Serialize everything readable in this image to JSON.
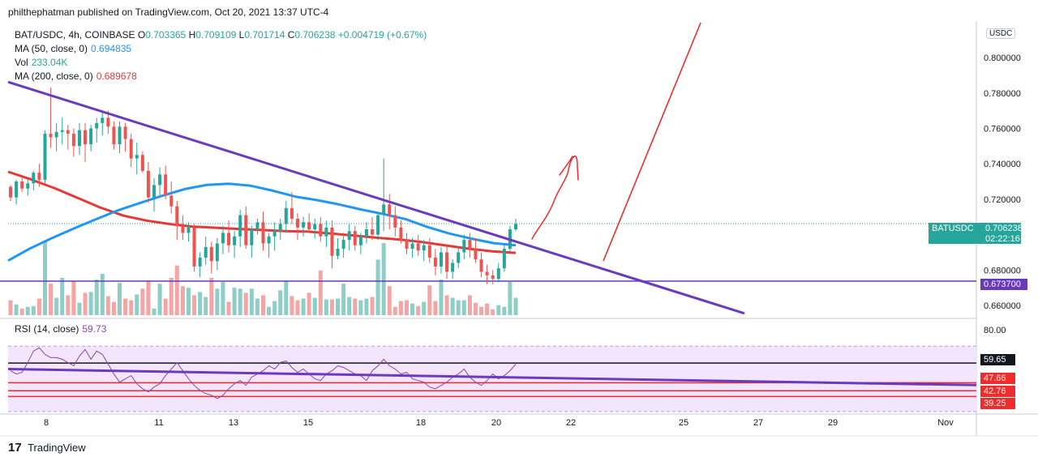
{
  "header": {
    "publish_line": "philthephatman published on TradingView.com, Oct 20, 2021 13:37 UTC-4"
  },
  "legend": {
    "symbol_line": "BAT/USDC, 4h, COINBASE",
    "ohlc": [
      {
        "k": "O",
        "v": "0.703365"
      },
      {
        "k": "H",
        "v": "0.709109"
      },
      {
        "k": "L",
        "v": "0.701714"
      },
      {
        "k": "C",
        "v": "0.706238"
      }
    ],
    "change": "+0.004719 (+0.67%)",
    "ma50_label": "MA (50, close, 0)",
    "ma50_value": "0.694835",
    "vol_label": "Vol",
    "vol_value": "233.04K",
    "ma200_label": "MA (200, close, 0)",
    "ma200_value": "0.689678",
    "rsi_label": "RSI (14, close)",
    "rsi_value": "59.73"
  },
  "currency_button": "USDC",
  "price_badges": {
    "last_symbol": "BATUSDC",
    "last_price": "0.706238",
    "last_timer": "02:22:16",
    "support_price": "0.673700"
  },
  "rsi_badges": [
    "59.65",
    "47.66",
    "42.76",
    "39.25"
  ],
  "footer": {
    "logo": "17",
    "brand": "TradingView"
  },
  "colors": {
    "up": "#26a69a",
    "down": "#ef5350",
    "vol_up": "#8fcdc7",
    "vol_down": "#f5a6a4",
    "ma50": "#2196f3",
    "ma200": "#e53935",
    "trendline": "#6a3bbf",
    "drawing": "#ef2b2b",
    "rsi": "#8e44ad",
    "rsi_band": "#f3e5fb"
  },
  "chart_data": {
    "type": "candlestick",
    "title": "BAT/USDC, 4h, COINBASE",
    "price_axis": {
      "ticks": [
        "0.660000",
        "0.680000",
        "0.720000",
        "0.740000",
        "0.760000",
        "0.780000",
        "0.800000"
      ],
      "ylim": [
        0.6545,
        0.8188
      ]
    },
    "time_axis": {
      "ticks": [
        "8",
        "11",
        "13",
        "15",
        "18",
        "20",
        "22",
        "25",
        "27",
        "29",
        "Nov"
      ]
    },
    "rsi_axis": {
      "ticks": [
        "80.00"
      ],
      "ylim": [
        30,
        86
      ],
      "band": [
        70,
        30
      ]
    },
    "candles": [
      [
        0.727,
        0.728,
        0.719,
        0.721
      ],
      [
        0.721,
        0.731,
        0.717,
        0.73
      ],
      [
        0.73,
        0.732,
        0.724,
        0.726
      ],
      [
        0.726,
        0.731,
        0.722,
        0.729
      ],
      [
        0.729,
        0.736,
        0.725,
        0.735
      ],
      [
        0.735,
        0.74,
        0.727,
        0.731
      ],
      [
        0.731,
        0.759,
        0.729,
        0.757
      ],
      [
        0.757,
        0.783,
        0.749,
        0.755
      ],
      [
        0.755,
        0.763,
        0.747,
        0.758
      ],
      [
        0.758,
        0.766,
        0.751,
        0.759
      ],
      [
        0.759,
        0.762,
        0.748,
        0.757
      ],
      [
        0.757,
        0.76,
        0.744,
        0.75
      ],
      [
        0.75,
        0.763,
        0.745,
        0.759
      ],
      [
        0.759,
        0.763,
        0.741,
        0.751
      ],
      [
        0.751,
        0.762,
        0.747,
        0.76
      ],
      [
        0.76,
        0.766,
        0.752,
        0.763
      ],
      [
        0.763,
        0.77,
        0.756,
        0.766
      ],
      [
        0.766,
        0.77,
        0.757,
        0.761
      ],
      [
        0.761,
        0.764,
        0.748,
        0.751
      ],
      [
        0.751,
        0.764,
        0.746,
        0.761
      ],
      [
        0.761,
        0.763,
        0.747,
        0.754
      ],
      [
        0.754,
        0.757,
        0.738,
        0.743
      ],
      [
        0.743,
        0.752,
        0.734,
        0.745
      ],
      [
        0.745,
        0.747,
        0.735,
        0.736
      ],
      [
        0.736,
        0.741,
        0.718,
        0.721
      ],
      [
        0.721,
        0.732,
        0.713,
        0.728
      ],
      [
        0.728,
        0.738,
        0.721,
        0.734
      ],
      [
        0.734,
        0.739,
        0.72,
        0.722
      ],
      [
        0.722,
        0.73,
        0.712,
        0.716
      ],
      [
        0.716,
        0.719,
        0.697,
        0.705
      ],
      [
        0.705,
        0.711,
        0.697,
        0.701
      ],
      [
        0.701,
        0.707,
        0.696,
        0.704
      ],
      [
        0.704,
        0.706,
        0.679,
        0.682
      ],
      [
        0.682,
        0.69,
        0.676,
        0.687
      ],
      [
        0.687,
        0.699,
        0.683,
        0.693
      ],
      [
        0.693,
        0.696,
        0.678,
        0.685
      ],
      [
        0.685,
        0.698,
        0.68,
        0.695
      ],
      [
        0.695,
        0.705,
        0.689,
        0.701
      ],
      [
        0.701,
        0.708,
        0.69,
        0.694
      ],
      [
        0.694,
        0.702,
        0.687,
        0.699
      ],
      [
        0.699,
        0.714,
        0.693,
        0.711
      ],
      [
        0.711,
        0.716,
        0.692,
        0.694
      ],
      [
        0.694,
        0.705,
        0.687,
        0.703
      ],
      [
        0.703,
        0.709,
        0.7,
        0.707
      ],
      [
        0.707,
        0.713,
        0.691,
        0.695
      ],
      [
        0.695,
        0.701,
        0.687,
        0.699
      ],
      [
        0.699,
        0.707,
        0.691,
        0.702
      ],
      [
        0.702,
        0.709,
        0.697,
        0.706
      ],
      [
        0.706,
        0.719,
        0.701,
        0.715
      ],
      [
        0.715,
        0.724,
        0.706,
        0.709
      ],
      [
        0.709,
        0.712,
        0.697,
        0.704
      ],
      [
        0.704,
        0.71,
        0.699,
        0.707
      ],
      [
        0.707,
        0.712,
        0.701,
        0.703
      ],
      [
        0.703,
        0.709,
        0.698,
        0.706
      ],
      [
        0.706,
        0.71,
        0.696,
        0.699
      ],
      [
        0.699,
        0.708,
        0.693,
        0.704
      ],
      [
        0.704,
        0.708,
        0.681,
        0.688
      ],
      [
        0.688,
        0.698,
        0.686,
        0.692
      ],
      [
        0.692,
        0.701,
        0.687,
        0.697
      ],
      [
        0.697,
        0.706,
        0.691,
        0.702
      ],
      [
        0.702,
        0.705,
        0.691,
        0.694
      ],
      [
        0.694,
        0.701,
        0.689,
        0.699
      ],
      [
        0.699,
        0.707,
        0.695,
        0.703
      ],
      [
        0.703,
        0.71,
        0.697,
        0.7
      ],
      [
        0.7,
        0.713,
        0.697,
        0.711
      ],
      [
        0.711,
        0.743,
        0.702,
        0.717
      ],
      [
        0.717,
        0.723,
        0.703,
        0.711
      ],
      [
        0.711,
        0.716,
        0.699,
        0.704
      ],
      [
        0.704,
        0.708,
        0.695,
        0.697
      ],
      [
        0.697,
        0.701,
        0.689,
        0.692
      ],
      [
        0.692,
        0.698,
        0.687,
        0.695
      ],
      [
        0.695,
        0.7,
        0.688,
        0.691
      ],
      [
        0.691,
        0.697,
        0.685,
        0.694
      ],
      [
        0.694,
        0.698,
        0.684,
        0.687
      ],
      [
        0.687,
        0.692,
        0.677,
        0.682
      ],
      [
        0.682,
        0.693,
        0.678,
        0.69
      ],
      [
        0.69,
        0.694,
        0.675,
        0.679
      ],
      [
        0.679,
        0.686,
        0.675,
        0.684
      ],
      [
        0.684,
        0.693,
        0.681,
        0.69
      ],
      [
        0.69,
        0.7,
        0.686,
        0.697
      ],
      [
        0.697,
        0.701,
        0.687,
        0.692
      ],
      [
        0.692,
        0.698,
        0.684,
        0.686
      ],
      [
        0.686,
        0.69,
        0.676,
        0.679
      ],
      [
        0.679,
        0.683,
        0.672,
        0.677
      ],
      [
        0.677,
        0.68,
        0.672,
        0.675
      ],
      [
        0.675,
        0.684,
        0.673,
        0.681
      ],
      [
        0.681,
        0.694,
        0.679,
        0.692
      ],
      [
        0.692,
        0.705,
        0.69,
        0.703
      ],
      [
        0.703,
        0.709,
        0.702,
        0.706
      ]
    ],
    "volume": [
      18,
      13,
      8,
      10,
      11,
      20,
      90,
      38,
      21,
      45,
      24,
      41,
      15,
      27,
      28,
      43,
      50,
      23,
      16,
      39,
      20,
      18,
      25,
      32,
      42,
      8,
      38,
      20,
      45,
      60,
      35,
      33,
      24,
      28,
      22,
      45,
      32,
      40,
      16,
      33,
      32,
      27,
      32,
      20,
      24,
      10,
      17,
      30,
      42,
      23,
      18,
      20,
      27,
      21,
      54,
      19,
      19,
      20,
      38,
      22,
      20,
      18,
      20,
      22,
      67,
      87,
      35,
      10,
      17,
      18,
      14,
      11,
      16,
      36,
      17,
      43,
      24,
      21,
      18,
      18,
      24,
      15,
      10,
      14,
      7,
      12,
      10,
      40,
      21
    ],
    "ma50": [
      0.6853,
      0.6922,
      0.6981,
      0.7036,
      0.7088,
      0.7138,
      0.718,
      0.722,
      0.7257,
      0.7281,
      0.7288,
      0.7276,
      0.7248,
      0.7215,
      0.7195,
      0.717,
      0.7142,
      0.7116,
      0.7088,
      0.7043,
      0.7006,
      0.6977,
      0.6952,
      0.694
    ],
    "ma200": [
      0.7355,
      0.7311,
      0.7263,
      0.7208,
      0.7153,
      0.7107,
      0.7079,
      0.706,
      0.7045,
      0.7039,
      0.7032,
      0.7026,
      0.702,
      0.7017,
      0.7006,
      0.6995,
      0.6982,
      0.6972,
      0.6957,
      0.6938,
      0.692,
      0.6905,
      0.6897
    ],
    "rsi": [
      55,
      53,
      54,
      60,
      67,
      69,
      65,
      63,
      63,
      62,
      60,
      58,
      64,
      68,
      62,
      67,
      65,
      59,
      53,
      48,
      50,
      52,
      47,
      44,
      42,
      45,
      47,
      52,
      56,
      60,
      55,
      50,
      46,
      43,
      41,
      40,
      38,
      40,
      44,
      47,
      49,
      46,
      51,
      53,
      55,
      58,
      56,
      60,
      61,
      57,
      54,
      56,
      53,
      50,
      49,
      53,
      55,
      58,
      57,
      55,
      53,
      52,
      49,
      55,
      58,
      62,
      58,
      56,
      53,
      54,
      50,
      49,
      48,
      45,
      44,
      46,
      48,
      51,
      53,
      56,
      51,
      48,
      46,
      49,
      53,
      50,
      52,
      55,
      59
    ],
    "trendline_price": [
      [
        0.7862,
        0.6555
      ]
    ],
    "trendline_rsi": [
      [
        56,
        46.2
      ]
    ],
    "support_level": 0.6737,
    "rsi_levels": [
      59.65,
      47.66,
      42.76,
      39.25
    ]
  }
}
